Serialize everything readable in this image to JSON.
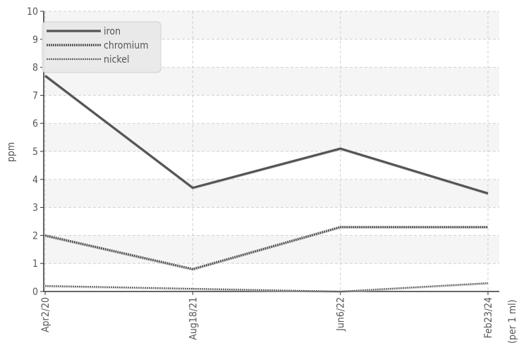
{
  "chart_data": {
    "type": "line",
    "title": "",
    "xlabel": "",
    "ylabel": "ppm",
    "unit_note": "(per 1 ml)",
    "categories": [
      "Apr2/20",
      "Aug18/21",
      "Jun6/22",
      "Feb23/24"
    ],
    "ylim": [
      0,
      10
    ],
    "yticks": [
      0,
      1,
      2,
      3,
      4,
      5,
      6,
      7,
      8,
      9,
      10
    ],
    "grid": true,
    "legend_position": "top-left",
    "series": [
      {
        "name": "iron",
        "values": [
          7.7,
          3.7,
          5.1,
          3.5
        ],
        "color": "#555555",
        "style": "solid"
      },
      {
        "name": "chromium",
        "values": [
          2.0,
          0.8,
          2.3,
          2.3
        ],
        "color": "#555555",
        "style": "dotted-thick"
      },
      {
        "name": "nickel",
        "values": [
          0.2,
          0.1,
          0.0,
          0.3
        ],
        "color": "#666666",
        "style": "dotted-thin"
      }
    ]
  }
}
